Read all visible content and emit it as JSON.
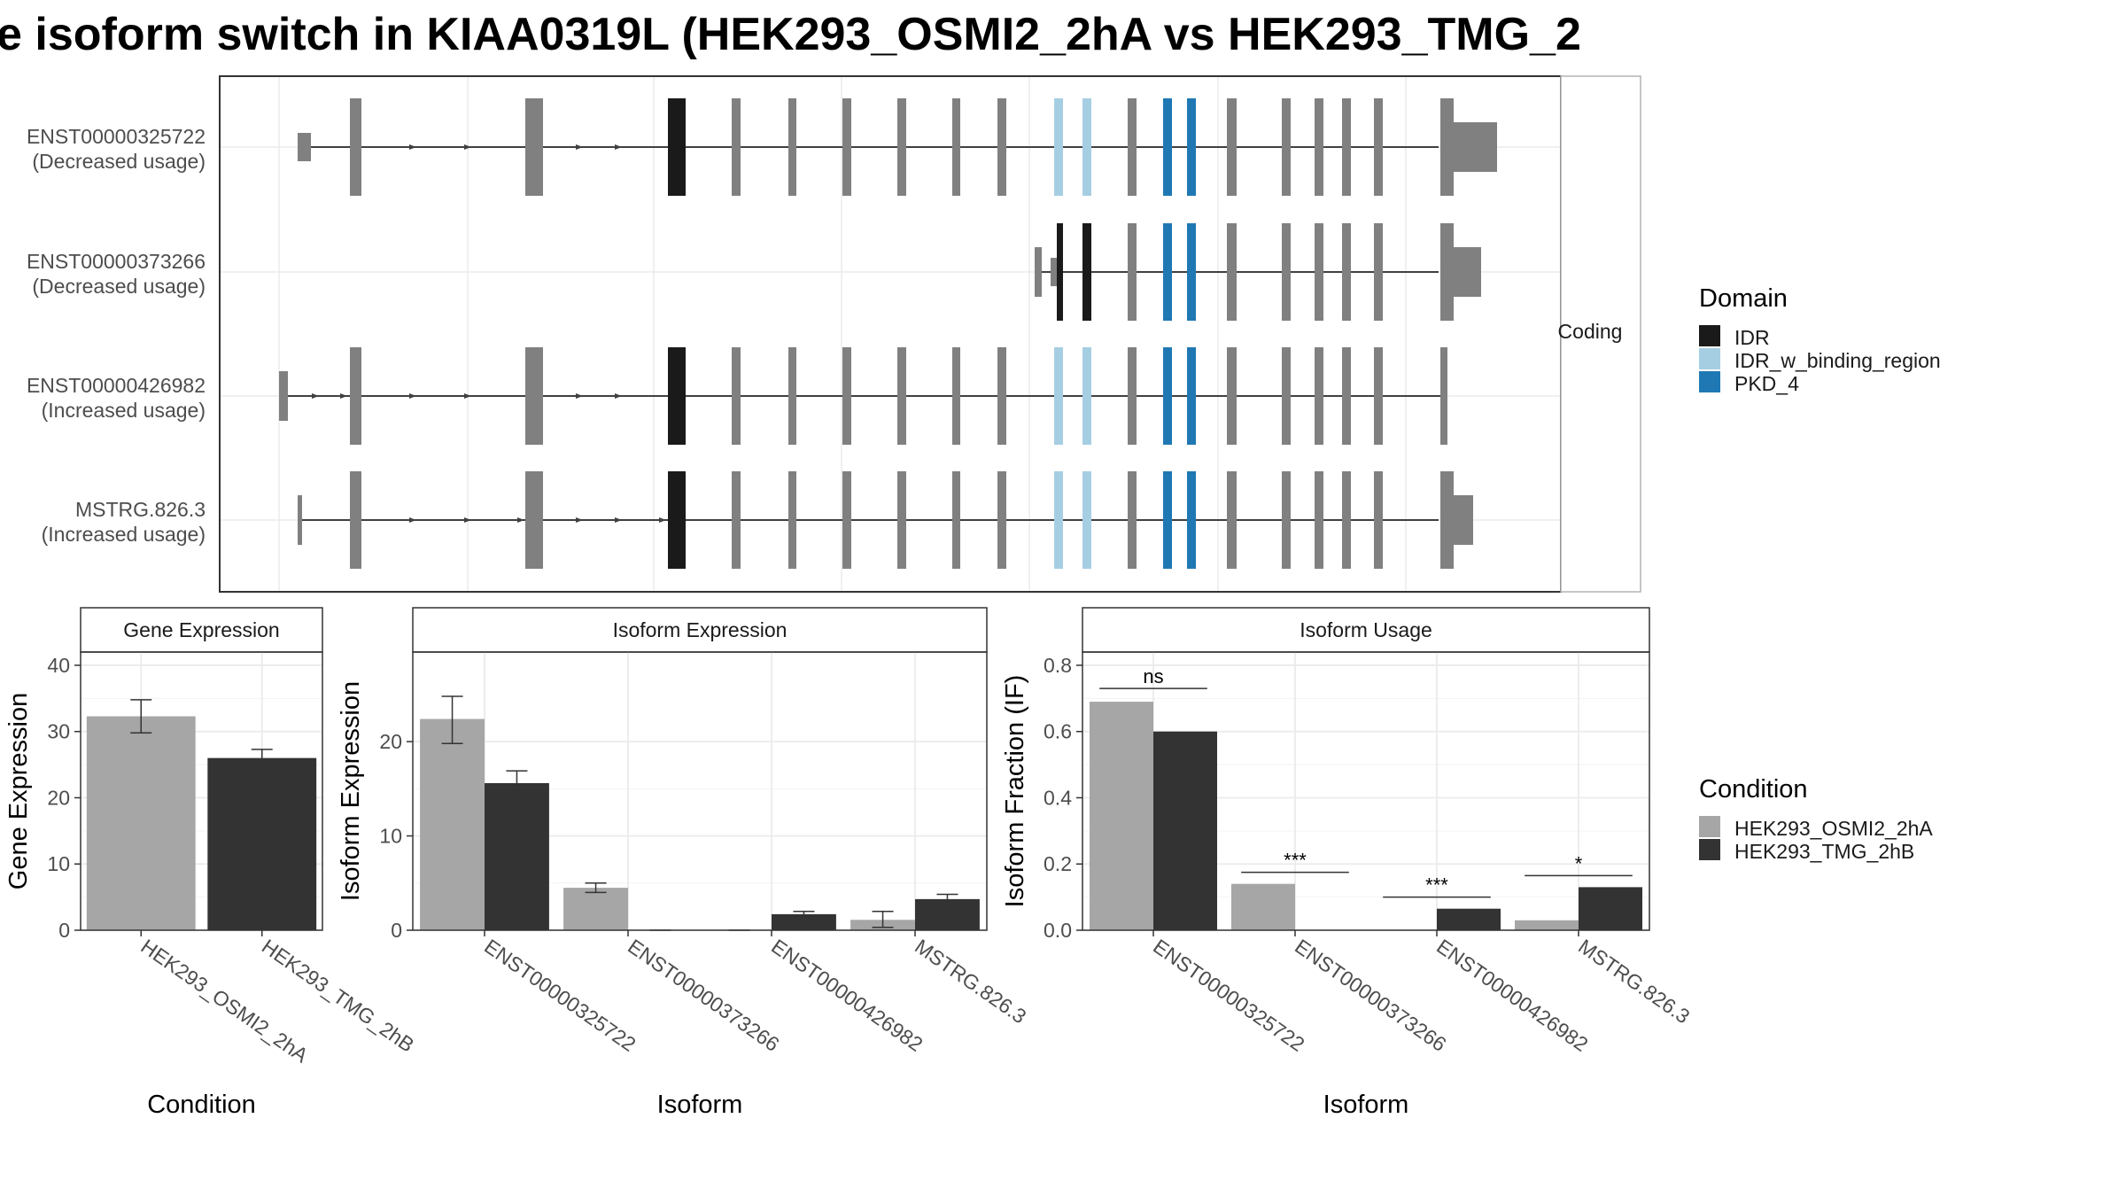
{
  "title": "e isoform switch in KIAA0319L (HEK293_OSMI2_2hA vs HEK293_TMG_2",
  "colors": {
    "exon": "#808080",
    "intron": "#404040",
    "IDR": "#1a1a1a",
    "IDR_w_binding_region": "#a6cee3",
    "PKD_4": "#1f78b4",
    "condA": "#a6a6a6",
    "condB": "#333333",
    "grid": "#ebebeb",
    "frame": "#333333"
  },
  "structure": {
    "strip_label": "Coding",
    "isoforms": [
      {
        "id": "ENST00000325722",
        "usage": "(Decreased usage)"
      },
      {
        "id": "ENST00000373266",
        "usage": "(Decreased usage)"
      },
      {
        "id": "ENST00000426982",
        "usage": "(Increased usage)"
      },
      {
        "id": "MSTRG.826.3",
        "usage": "(Increased usage)"
      }
    ]
  },
  "legend_domain": {
    "title": "Domain",
    "items": [
      {
        "label": "IDR",
        "color": "#1a1a1a"
      },
      {
        "label": "IDR_w_binding_region",
        "color": "#a6cee3"
      },
      {
        "label": "PKD_4",
        "color": "#1f78b4"
      }
    ]
  },
  "legend_condition": {
    "title": "Condition",
    "items": [
      {
        "label": "HEK293_OSMI2_2hA",
        "color": "#a6a6a6"
      },
      {
        "label": "HEK293_TMG_2hB",
        "color": "#333333"
      }
    ]
  },
  "chart_data": [
    {
      "type": "bar",
      "title": "Gene Expression",
      "xlabel": "Condition",
      "ylabel": "Gene Expression",
      "ylim": [
        0,
        42
      ],
      "yticks": [
        0,
        10,
        20,
        30,
        40
      ],
      "categories": [
        "HEK293_OSMI2_2hA",
        "HEK293_TMG_2hB"
      ],
      "values": [
        32.3,
        26.0
      ],
      "error": [
        [
          29.8,
          34.8
        ],
        [
          25.0,
          27.3
        ]
      ]
    },
    {
      "type": "bar",
      "title": "Isoform Expression",
      "xlabel": "Isoform",
      "ylabel": "Isoform Expression",
      "ylim": [
        0,
        29.5
      ],
      "yticks": [
        0,
        10,
        20
      ],
      "categories": [
        "ENST00000325722",
        "ENST00000373266",
        "ENST00000426982",
        "MSTRG.826.3"
      ],
      "series": [
        {
          "name": "HEK293_OSMI2_2hA",
          "values": [
            22.4,
            4.5,
            0.0,
            1.1
          ],
          "error": [
            [
              19.8,
              24.8
            ],
            [
              4.0,
              5.0
            ],
            [
              0.0,
              0.0
            ],
            [
              0.3,
              2.0
            ]
          ]
        },
        {
          "name": "HEK293_TMG_2hB",
          "values": [
            15.6,
            0.0,
            1.7,
            3.3
          ],
          "error": [
            [
              14.3,
              16.9
            ],
            [
              0.0,
              0.0
            ],
            [
              1.4,
              2.0
            ],
            [
              2.8,
              3.8
            ]
          ]
        }
      ]
    },
    {
      "type": "bar",
      "title": "Isoform Usage",
      "xlabel": "Isoform",
      "ylabel": "Isoform Fraction (IF)",
      "ylim": [
        0,
        0.84
      ],
      "yticks": [
        0.0,
        0.2,
        0.4,
        0.6,
        0.8
      ],
      "ytick_labels": [
        "0.0",
        "0.2",
        "0.4",
        "0.6",
        "0.8"
      ],
      "categories": [
        "ENST00000325722",
        "ENST00000373266",
        "ENST00000426982",
        "MSTRG.826.3"
      ],
      "series": [
        {
          "name": "HEK293_OSMI2_2hA",
          "values": [
            0.69,
            0.14,
            0.0,
            0.03
          ]
        },
        {
          "name": "HEK293_TMG_2hB",
          "values": [
            0.6,
            0.0,
            0.065,
            0.13
          ]
        }
      ],
      "significance": [
        {
          "label": "ns",
          "y": 0.73
        },
        {
          "label": "***",
          "y": 0.175
        },
        {
          "label": "***",
          "y": 0.1
        },
        {
          "label": "*",
          "y": 0.165
        }
      ]
    }
  ]
}
